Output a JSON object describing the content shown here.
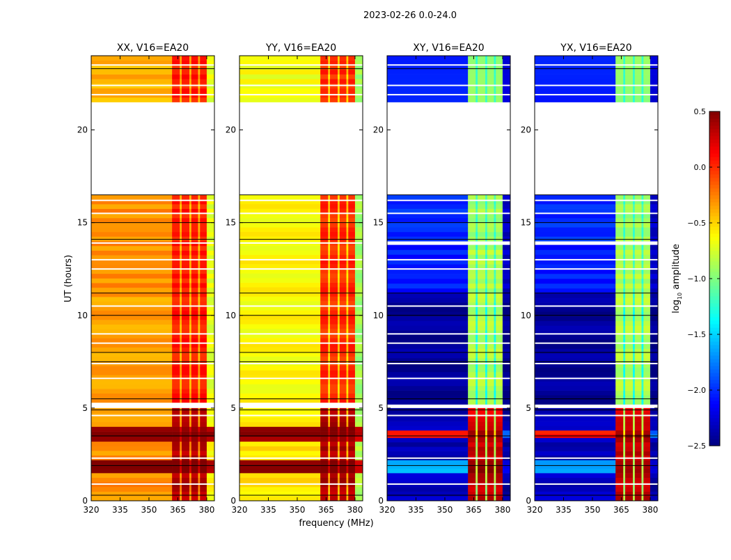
{
  "chart_data": {
    "type": "heatmap",
    "title": "2023-02-26 0.0-24.0",
    "xlabel": "frequency (MHz)",
    "ylabel": "UT (hours)",
    "xlim": [
      320,
      384
    ],
    "ylim": [
      0,
      24
    ],
    "xticks": [
      "320",
      "335",
      "350",
      "365",
      "380"
    ],
    "xtick_values": [
      320,
      335,
      350,
      365,
      380
    ],
    "yticks": [
      "0",
      "5",
      "10",
      "15",
      "20"
    ],
    "ytick_values": [
      0,
      5,
      10,
      15,
      20
    ],
    "colorbar": {
      "label": "log10 amplitude",
      "label_main": "log",
      "label_sub": "10",
      "label_rest": " amplitude",
      "range": [
        -2.5,
        0.5
      ],
      "ticks": [
        "0.5",
        "0.0",
        "−0.5",
        "−1.0",
        "−1.5",
        "−2.0",
        "−2.5"
      ],
      "tick_values": [
        0.5,
        0.0,
        -0.5,
        -1.0,
        -1.5,
        -2.0,
        -2.5
      ],
      "colormap": "jet"
    },
    "frequency_columns": [
      {
        "f": [
          320,
          362
        ],
        "kind": "low"
      },
      {
        "f": [
          362,
          366
        ],
        "kind": "high"
      },
      {
        "f": [
          366,
          367
        ],
        "kind": "gap"
      },
      {
        "f": [
          367,
          371
        ],
        "kind": "high"
      },
      {
        "f": [
          371,
          372
        ],
        "kind": "gap"
      },
      {
        "f": [
          372,
          375.5
        ],
        "kind": "high"
      },
      {
        "f": [
          375.5,
          376.5
        ],
        "kind": "gap"
      },
      {
        "f": [
          376.5,
          380
        ],
        "kind": "high"
      },
      {
        "f": [
          380,
          384
        ],
        "kind": "edge"
      }
    ],
    "panels": [
      {
        "name": "XX, V16=EA20",
        "segments": [
          {
            "t": [
              0,
              1.5
            ],
            "low": -0.3,
            "high": 0.35,
            "gap": -0.3,
            "edge": -0.6
          },
          {
            "t": [
              1.5,
              2.2
            ],
            "low": 0.45,
            "high": 0.5,
            "gap": 0.2,
            "edge": 0.3
          },
          {
            "t": [
              2.2,
              3.2
            ],
            "low": -0.3,
            "high": 0.35,
            "gap": -0.3,
            "edge": -0.6
          },
          {
            "t": [
              3.2,
              4.0
            ],
            "low": 0.5,
            "high": 0.5,
            "gap": 0.3,
            "edge": 0.4
          },
          {
            "t": [
              4.0,
              5.0
            ],
            "low": -0.3,
            "high": 0.4,
            "gap": -0.3,
            "edge": -0.6
          },
          {
            "t": [
              5.3,
              11.0
            ],
            "low": -0.35,
            "high": 0.05,
            "gap": -0.4,
            "edge": -0.7
          },
          {
            "t": [
              11.0,
              16.5
            ],
            "low": -0.3,
            "high": 0.05,
            "gap": -0.4,
            "edge": -0.7
          },
          {
            "t": [
              21.5,
              24.0
            ],
            "low": -0.4,
            "high": 0.05,
            "gap": -0.4,
            "edge": -0.7
          }
        ]
      },
      {
        "name": "YY, V16=EA20",
        "segments": [
          {
            "t": [
              0,
              1.5
            ],
            "low": -0.55,
            "high": 0.35,
            "gap": -0.4,
            "edge": -0.85
          },
          {
            "t": [
              1.5,
              2.2
            ],
            "low": 0.4,
            "high": 0.5,
            "gap": 0.2,
            "edge": 0.2
          },
          {
            "t": [
              2.2,
              3.2
            ],
            "low": -0.55,
            "high": 0.35,
            "gap": -0.4,
            "edge": -0.85
          },
          {
            "t": [
              3.2,
              4.0
            ],
            "low": 0.45,
            "high": 0.5,
            "gap": 0.3,
            "edge": 0.3
          },
          {
            "t": [
              4.0,
              5.0
            ],
            "low": -0.55,
            "high": 0.4,
            "gap": -0.4,
            "edge": -0.85
          },
          {
            "t": [
              5.3,
              16.5
            ],
            "low": -0.62,
            "high": 0.0,
            "gap": -0.5,
            "edge": -0.9
          },
          {
            "t": [
              21.5,
              24.0
            ],
            "low": -0.65,
            "high": 0.0,
            "gap": -0.5,
            "edge": -0.9
          }
        ]
      },
      {
        "name": "XY, V16=EA20",
        "segments": [
          {
            "t": [
              0,
              1.5
            ],
            "low": -2.3,
            "high": 0.3,
            "gap": -0.9,
            "edge": -2.4
          },
          {
            "t": [
              1.5,
              2.2
            ],
            "low": -1.6,
            "high": 0.45,
            "gap": -0.8,
            "edge": -2.2
          },
          {
            "t": [
              2.2,
              3.4
            ],
            "low": -2.35,
            "high": 0.3,
            "gap": -0.9,
            "edge": -2.4
          },
          {
            "t": [
              3.4,
              3.8
            ],
            "low": 0.1,
            "high": 0.45,
            "gap": -0.5,
            "edge": -1.8
          },
          {
            "t": [
              3.8,
              5.0
            ],
            "low": -2.35,
            "high": 0.2,
            "gap": -0.9,
            "edge": -2.4
          },
          {
            "t": [
              5.2,
              11.2
            ],
            "low": -2.42,
            "high": -0.85,
            "gap": -1.3,
            "edge": -2.45
          },
          {
            "t": [
              11.2,
              13.8
            ],
            "low": -2.05,
            "high": -0.85,
            "gap": -1.2,
            "edge": -2.3
          },
          {
            "t": [
              14.0,
              16.5
            ],
            "low": -2.0,
            "high": -0.9,
            "gap": -1.2,
            "edge": -2.3
          },
          {
            "t": [
              21.5,
              24.0
            ],
            "low": -2.1,
            "high": -1.0,
            "gap": -1.3,
            "edge": -2.3
          }
        ]
      },
      {
        "name": "YX, V16=EA20",
        "segments": [
          {
            "t": [
              0,
              1.5
            ],
            "low": -2.3,
            "high": 0.3,
            "gap": -0.9,
            "edge": -2.4
          },
          {
            "t": [
              1.5,
              2.2
            ],
            "low": -1.6,
            "high": 0.45,
            "gap": -0.8,
            "edge": -2.2
          },
          {
            "t": [
              2.2,
              3.4
            ],
            "low": -2.35,
            "high": 0.3,
            "gap": -0.9,
            "edge": -2.4
          },
          {
            "t": [
              3.4,
              3.8
            ],
            "low": 0.1,
            "high": 0.45,
            "gap": -0.5,
            "edge": -1.8
          },
          {
            "t": [
              3.8,
              5.0
            ],
            "low": -2.35,
            "high": 0.2,
            "gap": -0.9,
            "edge": -2.4
          },
          {
            "t": [
              5.2,
              11.2
            ],
            "low": -2.42,
            "high": -0.85,
            "gap": -1.3,
            "edge": -2.45
          },
          {
            "t": [
              11.2,
              13.8
            ],
            "low": -2.05,
            "high": -0.85,
            "gap": -1.2,
            "edge": -2.3
          },
          {
            "t": [
              14.0,
              16.5
            ],
            "low": -2.0,
            "high": -0.9,
            "gap": -1.2,
            "edge": -2.3
          },
          {
            "t": [
              21.5,
              24.0
            ],
            "low": -2.1,
            "high": -1.0,
            "gap": -1.3,
            "edge": -2.3
          }
        ]
      }
    ],
    "flagged_rows_hours": [
      0.9,
      2.3,
      4.6,
      6.6,
      7.4,
      8.5,
      9.0,
      10.5,
      12.5,
      13.0,
      13.9,
      15.5,
      16.2,
      21.9,
      22.4,
      23.5
    ],
    "black_rows_hours": [
      0.3,
      1.9,
      3.5,
      4.9,
      5.5,
      7.5,
      8.0,
      10.0,
      11.2,
      14.1,
      15.0,
      16.5,
      23.3
    ]
  }
}
